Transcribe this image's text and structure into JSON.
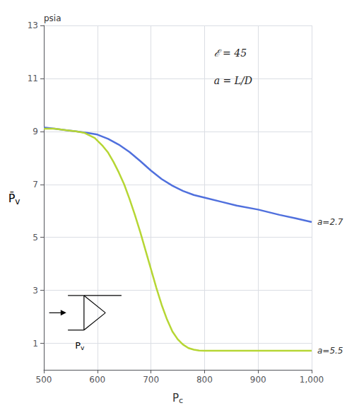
{
  "chart_data": {
    "type": "line",
    "xlabel": "Pc",
    "ylabel": "P̄v",
    "annotations": [
      "psia",
      "ℰ = 45",
      "a = L/D",
      "Pv"
    ],
    "series": [
      {
        "name": "a=2.7",
        "x": [
          500,
          520,
          540,
          560,
          580,
          600,
          620,
          640,
          660,
          680,
          700,
          720,
          740,
          760,
          780,
          800,
          830,
          860,
          900,
          940,
          970,
          1000
        ],
        "values": [
          9.15,
          9.1,
          9.05,
          9.0,
          8.95,
          8.88,
          8.72,
          8.5,
          8.22,
          7.88,
          7.52,
          7.2,
          6.95,
          6.75,
          6.6,
          6.5,
          6.35,
          6.2,
          6.05,
          5.85,
          5.72,
          5.58
        ]
      },
      {
        "name": "a=5.5",
        "x": [
          500,
          520,
          540,
          560,
          575,
          585,
          595,
          600,
          610,
          620,
          630,
          640,
          650,
          660,
          670,
          680,
          690,
          700,
          710,
          720,
          730,
          740,
          750,
          760,
          770,
          780,
          790,
          800,
          820,
          850,
          1000
        ],
        "values": [
          9.1,
          9.1,
          9.05,
          9.0,
          8.95,
          8.85,
          8.75,
          8.65,
          8.45,
          8.2,
          7.85,
          7.45,
          7.0,
          6.45,
          5.85,
          5.2,
          4.5,
          3.8,
          3.1,
          2.45,
          1.9,
          1.45,
          1.15,
          0.95,
          0.82,
          0.76,
          0.73,
          0.72,
          0.72,
          0.72,
          0.72
        ]
      }
    ],
    "xlim": [
      500,
      1000
    ],
    "xticks": [
      500,
      600,
      700,
      800,
      900,
      {
        "value": 1000,
        "label": "1,000"
      }
    ],
    "ylim": [
      0,
      13
    ],
    "yticks": [
      1,
      3,
      5,
      7,
      9,
      11,
      13
    ],
    "grid": true
  }
}
